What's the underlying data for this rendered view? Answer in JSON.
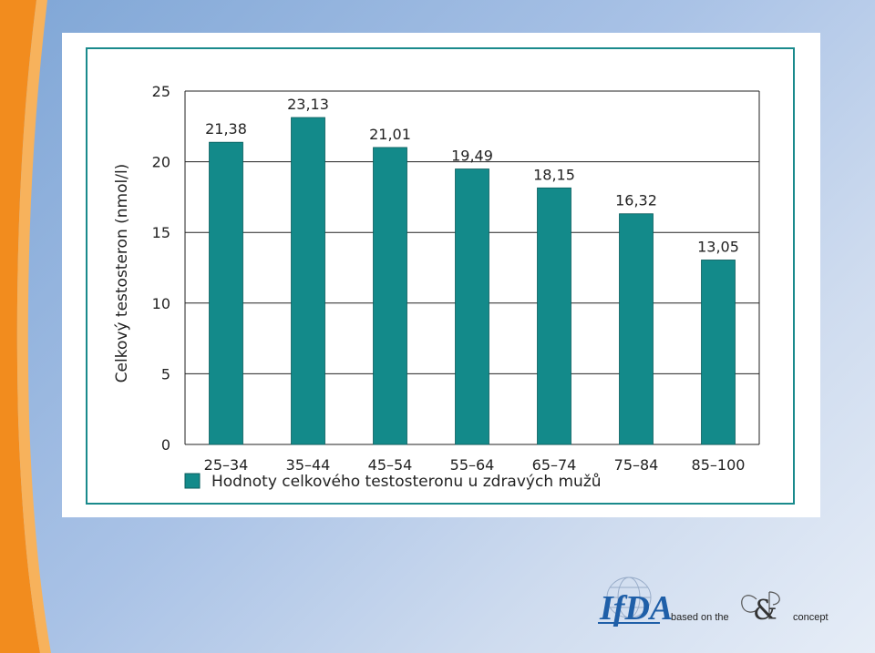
{
  "chart_data": {
    "type": "bar",
    "categories": [
      "25–34",
      "35–44",
      "45–54",
      "55–64",
      "65–74",
      "75–84",
      "85–100"
    ],
    "series": [
      {
        "name": "Hodnoty celkového testosteronu u zdravých mužů",
        "values": [
          21.38,
          23.13,
          21.01,
          19.49,
          18.15,
          16.32,
          13.05
        ],
        "labels": [
          "21,38",
          "23,13",
          "21,01",
          "19,49",
          "18,15",
          "16,32",
          "13,05"
        ],
        "color": "#138a8a"
      }
    ],
    "title": "",
    "xlabel": "",
    "ylabel": "Celkový testosteron (nmol/l)",
    "ylim": [
      0,
      25
    ],
    "yticks": [
      0,
      5,
      10,
      15,
      20,
      25
    ],
    "grid": true,
    "legend": "bottom"
  },
  "colors": {
    "bar": "#138a8a",
    "frame": "#1a8a8c",
    "stripe_orange": "#f28c1e",
    "logo_blue": "#1f5fa8"
  },
  "logo": {
    "brand": "IfDA",
    "text_left": "based on the",
    "text_right": "concept"
  }
}
